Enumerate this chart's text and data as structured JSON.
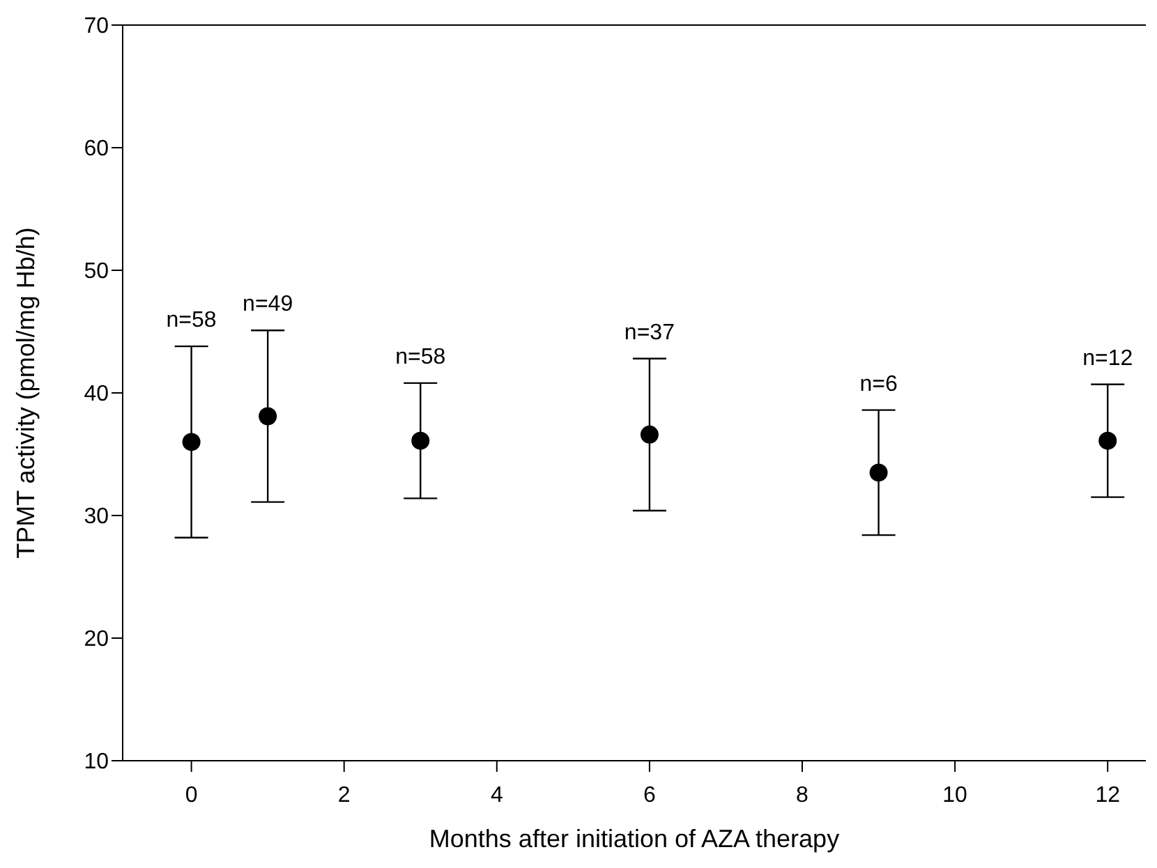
{
  "chart_data": {
    "type": "scatter",
    "xlabel": "Months after initiation of AZA therapy",
    "ylabel": "TPMT activity (pmol/mg Hb/h)",
    "x": [
      0,
      1,
      3,
      6,
      9,
      12
    ],
    "series": [
      {
        "color": "#000000",
        "values": [
          36.0,
          38.1,
          36.1,
          36.6,
          33.5,
          36.1
        ],
        "errors": [
          7.8,
          7.0,
          4.7,
          6.2,
          5.1,
          4.6
        ]
      }
    ],
    "marker": "circle",
    "xlim": [
      -0.9,
      12.5
    ],
    "xticks": [
      0,
      2,
      4,
      6,
      8,
      10,
      12
    ],
    "ylim": [
      10,
      70
    ],
    "yticks": [
      10,
      20,
      30,
      40,
      50,
      60,
      70
    ],
    "grid": false,
    "legend": false,
    "annotations": [
      {
        "text": "n=58",
        "x": 0,
        "y": 43.8
      },
      {
        "text": "n=49",
        "x": 1,
        "y": 45.1
      },
      {
        "text": "n=58",
        "x": 3,
        "y": 40.8
      },
      {
        "text": "n=37",
        "x": 6,
        "y": 42.8
      },
      {
        "text": "n=6",
        "x": 9,
        "y": 38.6
      },
      {
        "text": "n=12",
        "x": 12,
        "y": 40.7
      }
    ]
  }
}
